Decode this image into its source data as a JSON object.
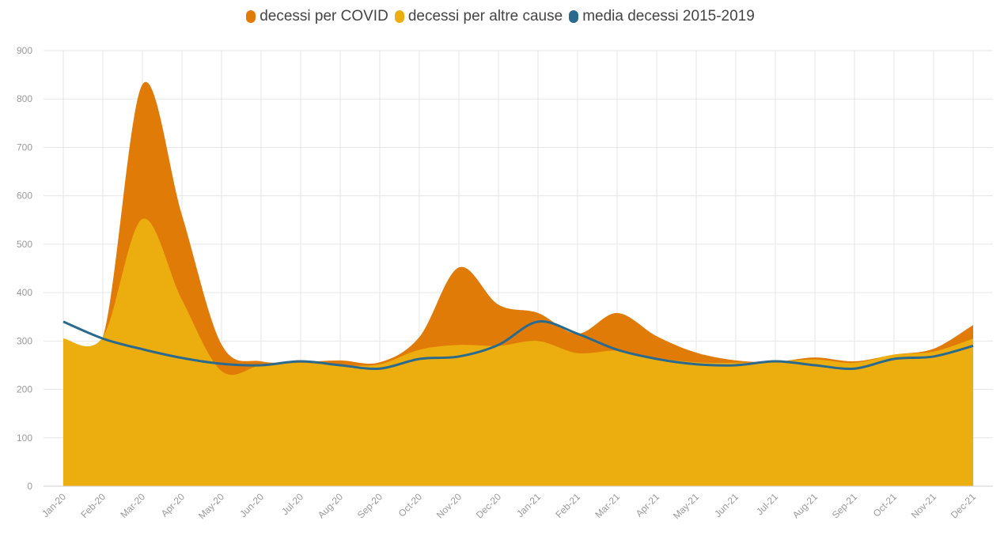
{
  "chart_data": {
    "type": "area",
    "categories": [
      "Jan-20",
      "Feb-20",
      "Mar-20",
      "Apr-20",
      "May-20",
      "Jun-20",
      "Jul-20",
      "Aug-20",
      "Sep-20",
      "Oct-20",
      "Nov-20",
      "Dec-20",
      "Jan-21",
      "Feb-21",
      "Mar-21",
      "Apr-21",
      "May-21",
      "Jun-21",
      "Jul-21",
      "Aug-21",
      "Sep-21",
      "Oct-21",
      "Nov-21",
      "Dec-21"
    ],
    "ylim": [
      0,
      900
    ],
    "yticks": [
      0,
      100,
      200,
      300,
      400,
      500,
      600,
      700,
      800,
      900
    ],
    "grid": true,
    "legend_position": "top-center",
    "series": [
      {
        "name": "decessi per COVID",
        "color": "#E07B08",
        "stacked_top": true,
        "values": [
          0,
          0,
          278,
          175,
          55,
          8,
          2,
          10,
          4,
          26,
          160,
          85,
          58,
          40,
          78,
          45,
          20,
          5,
          0,
          4,
          3,
          0,
          6,
          28
        ]
      },
      {
        "name": "decessi per altre cause",
        "color": "#ECAE0F",
        "values": [
          305,
          308,
          552,
          385,
          238,
          250,
          255,
          250,
          252,
          282,
          292,
          290,
          300,
          275,
          280,
          265,
          256,
          255,
          257,
          262,
          255,
          272,
          278,
          305
        ]
      },
      {
        "name": "media decessi 2015-2019",
        "color": "#2B6A8C",
        "type": "line",
        "values": [
          340,
          305,
          283,
          265,
          253,
          250,
          258,
          250,
          243,
          263,
          268,
          292,
          340,
          315,
          282,
          263,
          252,
          250,
          258,
          250,
          243,
          263,
          268,
          290
        ]
      }
    ]
  }
}
